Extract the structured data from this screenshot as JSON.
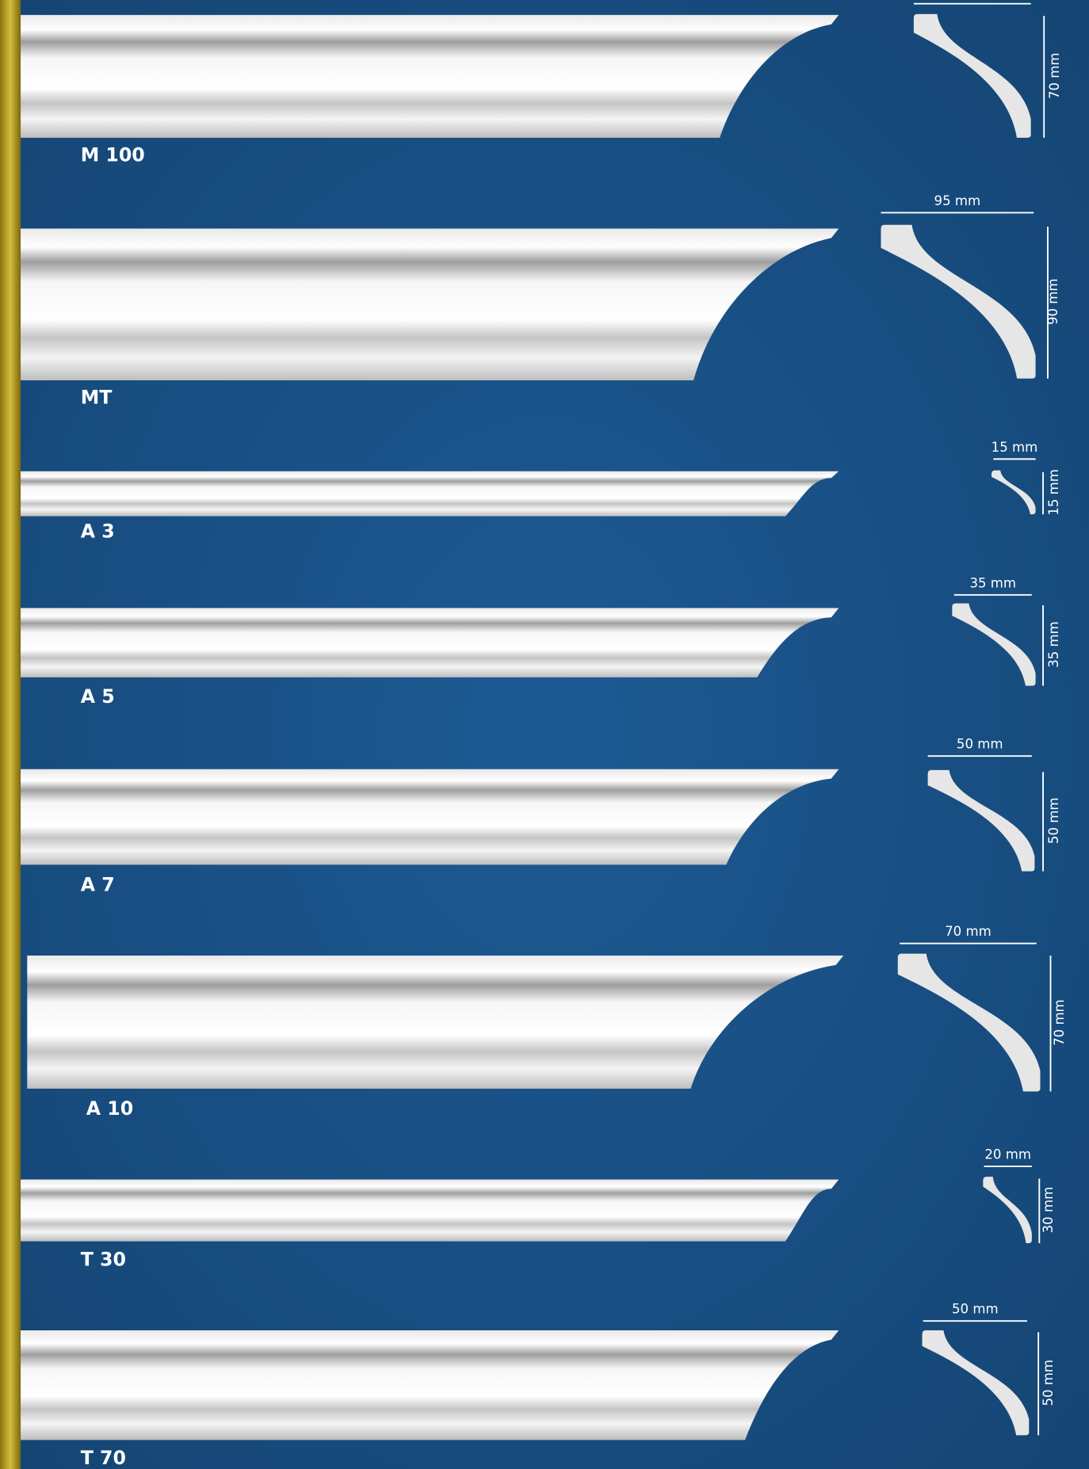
{
  "products": [
    {
      "name": "M 100",
      "width": null,
      "height": "70 mm"
    },
    {
      "name": "MT",
      "width": "95 mm",
      "height": "90 mm"
    },
    {
      "name": "A 3",
      "width": "15 mm",
      "height": "15 mm"
    },
    {
      "name": "A 5",
      "width": "35 mm",
      "height": "35 mm"
    },
    {
      "name": "A 7",
      "width": "50 mm",
      "height": "50 mm"
    },
    {
      "name": "A 10",
      "width": "70 mm",
      "height": "70 mm"
    },
    {
      "name": "T 30",
      "width": "20 mm",
      "height": "30 mm"
    },
    {
      "name": "T 70",
      "width": "50 mm",
      "height": "50 mm"
    }
  ]
}
